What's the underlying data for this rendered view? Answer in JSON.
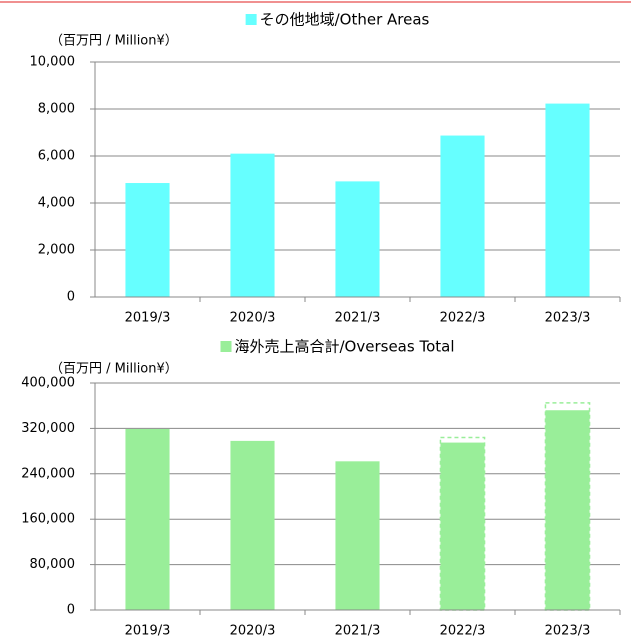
{
  "chart_data": [
    {
      "type": "bar",
      "title": "その他地域/Other Areas",
      "unit_label": "（百万円 / Million¥）",
      "categories": [
        "2019/3",
        "2020/3",
        "2021/3",
        "2022/3",
        "2023/3"
      ],
      "values": [
        4850,
        6100,
        4920,
        6870,
        8230
      ],
      "color": "#66ffff",
      "ylim": [
        0,
        10000
      ],
      "yticks": [
        0,
        {
          "value": 2000,
          "label": "2,000"
        },
        {
          "value": 4000,
          "label": "4,000"
        },
        {
          "value": 6000,
          "label": "6,000"
        },
        {
          "value": 8000,
          "label": "8,000"
        },
        {
          "value": 10000,
          "label": "10,000"
        }
      ],
      "grid": true
    },
    {
      "type": "bar",
      "title": "海外売上高合計/Overseas Total",
      "unit_label": "（百万円 / Million¥）",
      "categories": [
        "2019/3",
        "2020/3",
        "2021/3",
        "2022/3",
        "2023/3"
      ],
      "values": [
        319000,
        298000,
        262000,
        295000,
        352000
      ],
      "color": "#99ee99",
      "outline_values": [
        null,
        null,
        null,
        304000,
        365000
      ],
      "ylim": [
        0,
        400000
      ],
      "yticks": [
        0,
        {
          "value": 80000,
          "label": "80,000"
        },
        {
          "value": 160000,
          "label": "160,000"
        },
        {
          "value": 240000,
          "label": "240,000"
        },
        {
          "value": 320000,
          "label": "320,000"
        },
        {
          "value": 400000,
          "label": "400,000"
        }
      ],
      "grid": true
    }
  ]
}
